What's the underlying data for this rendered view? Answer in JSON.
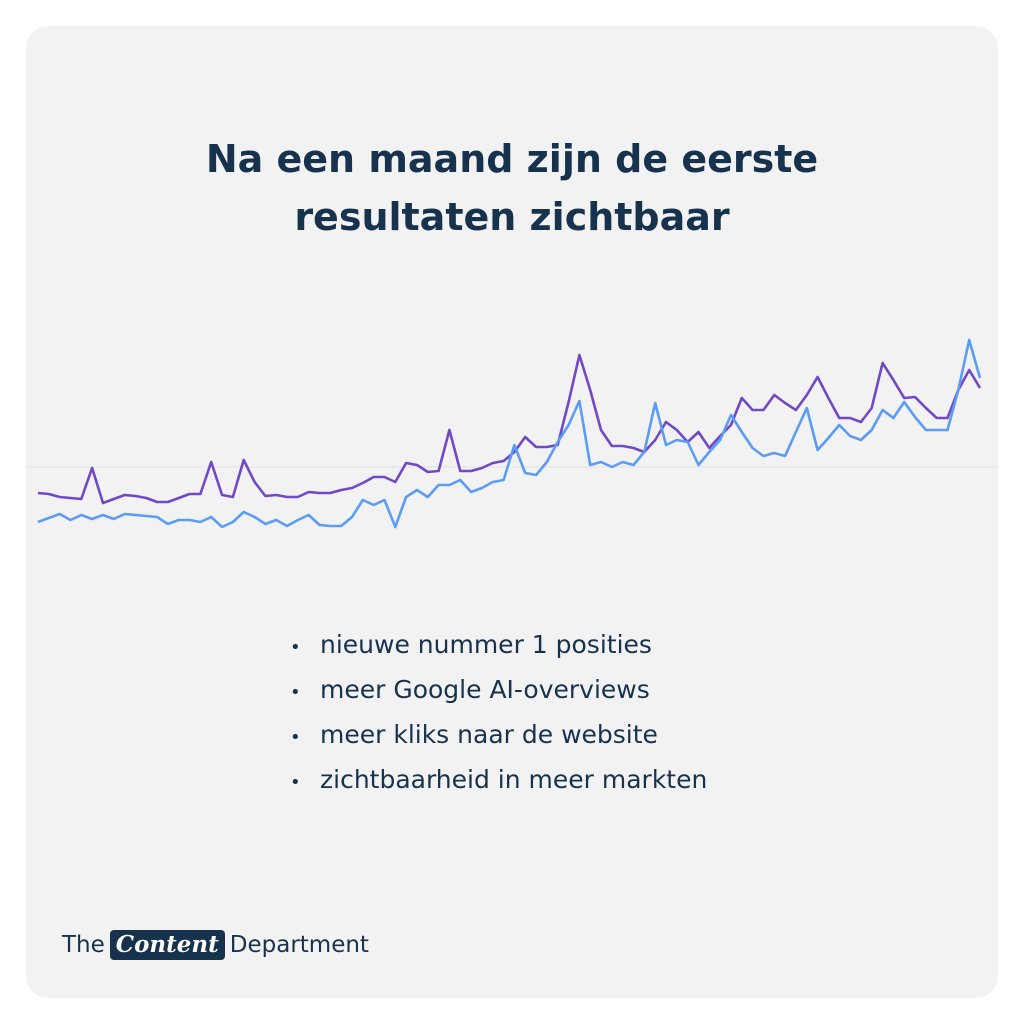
{
  "chart_data": {
    "type": "line",
    "title": "Na een maand zijn de eerste resultaten zichtbaar",
    "ylim": [
      0,
      300
    ],
    "series": [
      {
        "color": "#7149c6",
        "values": [
          107,
          106,
          103,
          102,
          101,
          132,
          97,
          101,
          105,
          104,
          102,
          98,
          98,
          102,
          106,
          106,
          138,
          105,
          103,
          140,
          118,
          104,
          105,
          103,
          103,
          108,
          107,
          107,
          110,
          112,
          117,
          123,
          123,
          118,
          137,
          135,
          128,
          129,
          170,
          129,
          129,
          132,
          137,
          139,
          148,
          163,
          153,
          153,
          155,
          198,
          245,
          210,
          170,
          154,
          154,
          152,
          148,
          160,
          178,
          170,
          158,
          168,
          152,
          164,
          175,
          202,
          190,
          190,
          205,
          197,
          190,
          205,
          223,
          202,
          182,
          182,
          178,
          192,
          237,
          220,
          202,
          203,
          192,
          182,
          182,
          210,
          230,
          212
        ]
      },
      {
        "color": "#5b9cf4",
        "values": [
          78,
          82,
          86,
          80,
          85,
          81,
          85,
          81,
          86,
          85,
          84,
          83,
          76,
          80,
          80,
          78,
          83,
          73,
          78,
          88,
          83,
          76,
          80,
          74,
          80,
          85,
          75,
          74,
          74,
          83,
          100,
          95,
          100,
          73,
          103,
          110,
          103,
          115,
          115,
          120,
          108,
          112,
          118,
          120,
          155,
          127,
          125,
          138,
          158,
          175,
          199,
          135,
          138,
          133,
          138,
          135,
          148,
          197,
          155,
          160,
          158,
          135,
          148,
          160,
          185,
          168,
          152,
          144,
          147,
          144,
          168,
          192,
          150,
          162,
          175,
          164,
          160,
          170,
          190,
          182,
          198,
          183,
          170,
          170,
          170,
          210,
          260,
          222
        ]
      }
    ]
  },
  "notes": [
    "nieuwe nummer 1 posities",
    "meer Google AI-overviews",
    "meer kliks naar de website",
    "zichtbaarheid in meer markten"
  ],
  "brand": {
    "pre": "The",
    "highlight": "Content",
    "post": "Department"
  }
}
